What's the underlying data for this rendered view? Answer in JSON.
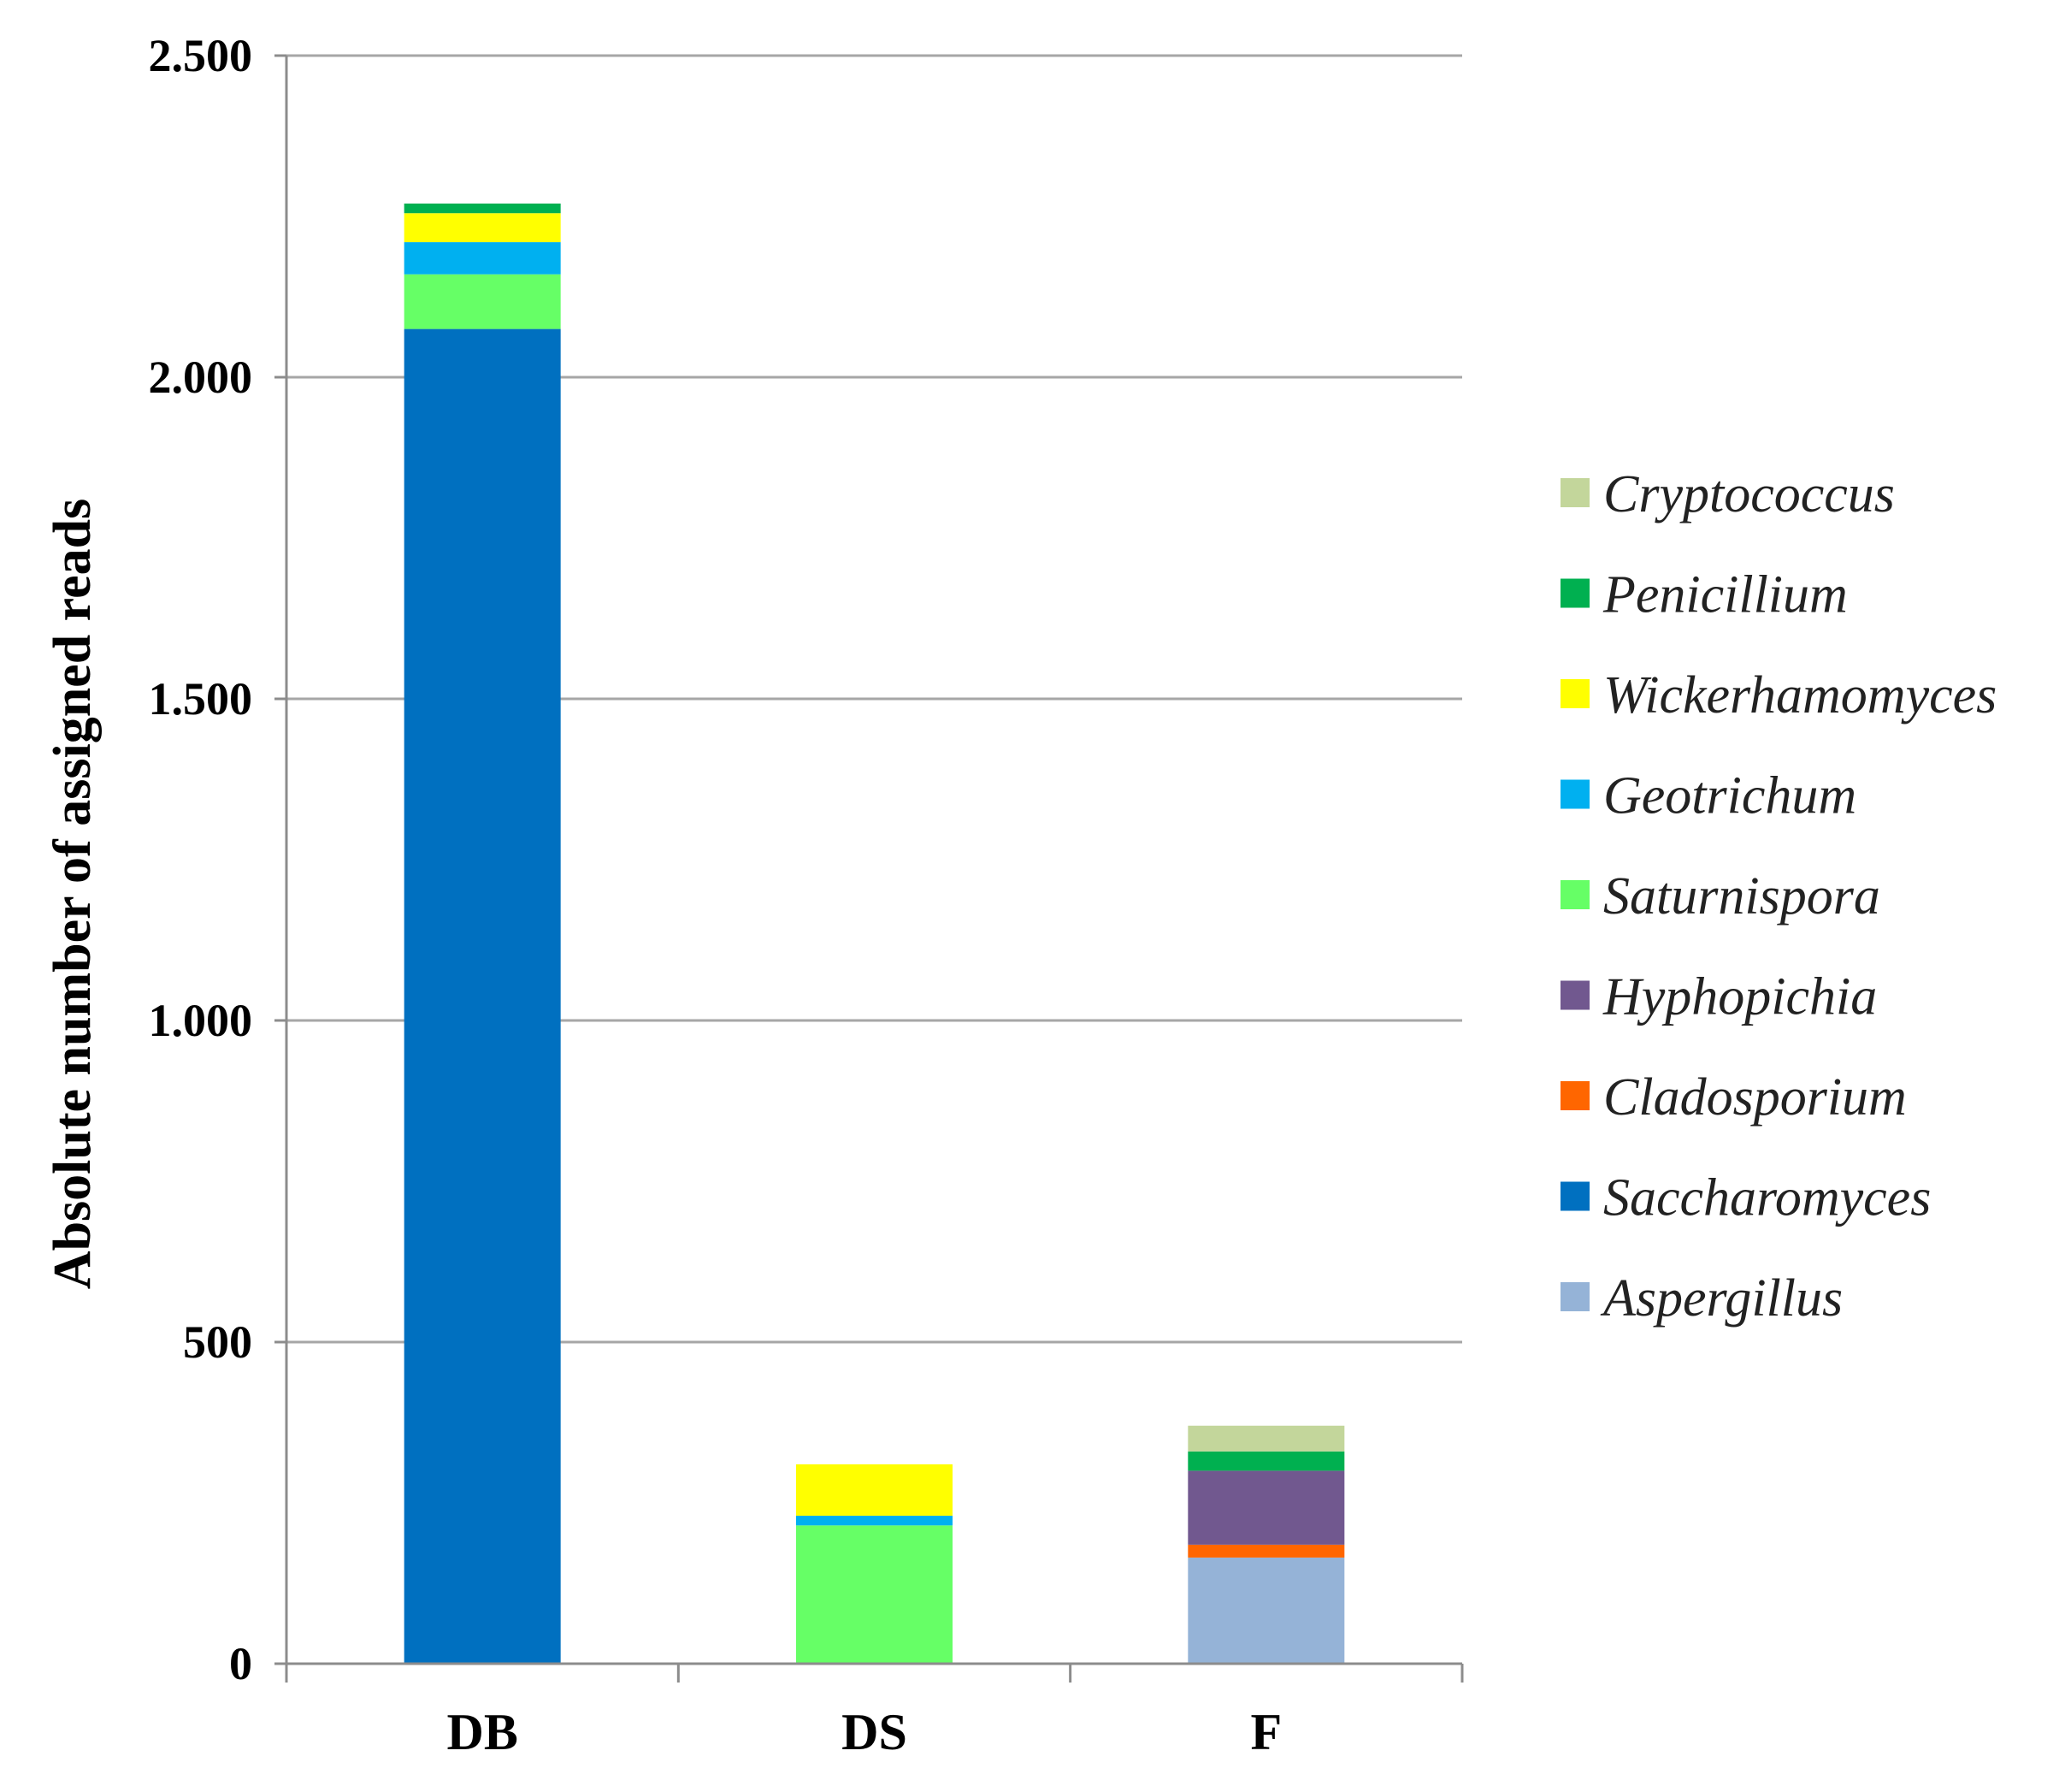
{
  "chart_data": {
    "type": "bar",
    "stacked": true,
    "ylabel": "Absolute number of assigned reads",
    "xlabel": "",
    "ylim": [
      0,
      2500
    ],
    "yticks": [
      0,
      500,
      1000,
      1500,
      2000,
      2500
    ],
    "ytick_labels": [
      "0",
      "500",
      "1.000",
      "1.500",
      "2.000",
      "2.500"
    ],
    "grid": true,
    "legend_position": "right",
    "categories": [
      "DB",
      "DS",
      "F"
    ],
    "series": [
      {
        "name": "Aspergillus",
        "color": "#95B3D7",
        "values": [
          0,
          0,
          165
        ]
      },
      {
        "name": "Saccharomyces",
        "color": "#0070C0",
        "values": [
          2075,
          0,
          0
        ]
      },
      {
        "name": "Cladosporium",
        "color": "#FF6600",
        "values": [
          0,
          0,
          20
        ]
      },
      {
        "name": "Hyphopichia",
        "color": "#71588F",
        "values": [
          0,
          0,
          115
        ]
      },
      {
        "name": "Saturnispora",
        "color": "#66FF66",
        "values": [
          85,
          215,
          0
        ]
      },
      {
        "name": "Geotrichum",
        "color": "#00B0F0",
        "values": [
          50,
          15,
          0
        ]
      },
      {
        "name": "Wickerhamomyces",
        "color": "#FFFF00",
        "values": [
          45,
          80,
          0
        ]
      },
      {
        "name": "Penicillium",
        "color": "#00B050",
        "values": [
          15,
          0,
          30
        ]
      },
      {
        "name": "Cryptococcus",
        "color": "#C3D69B",
        "values": [
          0,
          0,
          40
        ]
      }
    ]
  }
}
